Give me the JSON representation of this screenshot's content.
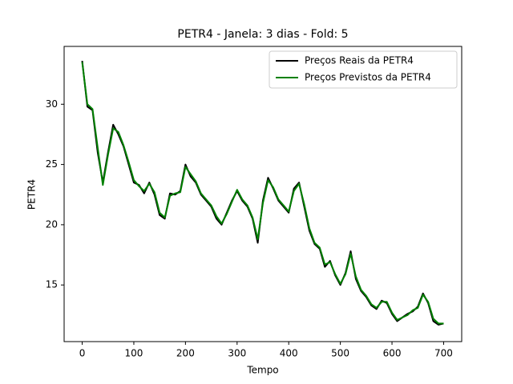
{
  "chart_data": {
    "type": "line",
    "title": "PETR4 - Janela: 3 dias - Fold: 5",
    "xlabel": "Tempo",
    "ylabel": "PETR4",
    "x": [
      0,
      10,
      20,
      30,
      40,
      50,
      60,
      70,
      80,
      90,
      100,
      110,
      120,
      130,
      140,
      150,
      160,
      170,
      180,
      190,
      200,
      210,
      220,
      230,
      240,
      250,
      260,
      270,
      280,
      290,
      300,
      310,
      320,
      330,
      340,
      350,
      360,
      370,
      380,
      390,
      400,
      410,
      420,
      430,
      440,
      450,
      460,
      470,
      480,
      490,
      500,
      510,
      520,
      530,
      540,
      550,
      560,
      570,
      580,
      590,
      600,
      610,
      620,
      630,
      640,
      650,
      660,
      670,
      680,
      690,
      700
    ],
    "series": [
      {
        "name": "Preços Reais da PETR4",
        "color": "#000000",
        "values": [
          33.6,
          29.8,
          29.5,
          26.0,
          23.5,
          26.0,
          28.3,
          27.5,
          26.5,
          25.0,
          23.5,
          23.3,
          22.6,
          23.5,
          22.5,
          20.8,
          20.5,
          22.6,
          22.5,
          22.8,
          25.0,
          24.0,
          23.5,
          22.5,
          22.0,
          21.5,
          20.5,
          20.0,
          21.0,
          22.0,
          22.8,
          22.0,
          21.5,
          20.5,
          18.5,
          22.0,
          23.9,
          23.0,
          22.0,
          21.5,
          21.0,
          23.0,
          23.5,
          21.5,
          19.5,
          18.4,
          18.0,
          16.5,
          17.0,
          15.8,
          15.0,
          16.0,
          17.8,
          15.5,
          14.5,
          14.0,
          13.3,
          13.0,
          13.7,
          13.5,
          12.6,
          12.0,
          12.3,
          12.6,
          12.8,
          13.2,
          14.3,
          13.5,
          12.0,
          11.7,
          11.8
        ]
      },
      {
        "name": "Preços Previstos da PETR4",
        "color": "#008000",
        "values": [
          33.5,
          30.0,
          29.6,
          26.4,
          23.3,
          25.8,
          28.0,
          27.7,
          26.6,
          25.2,
          23.7,
          23.2,
          22.8,
          23.4,
          22.7,
          21.0,
          20.6,
          22.4,
          22.6,
          22.7,
          24.8,
          24.2,
          23.6,
          22.6,
          22.1,
          21.6,
          20.7,
          20.1,
          20.9,
          21.9,
          22.9,
          22.1,
          21.6,
          20.6,
          18.8,
          21.8,
          23.7,
          23.1,
          22.1,
          21.6,
          21.1,
          22.8,
          23.4,
          21.7,
          19.7,
          18.5,
          18.1,
          16.7,
          16.9,
          15.9,
          15.1,
          15.9,
          17.6,
          15.7,
          14.6,
          14.1,
          13.4,
          13.1,
          13.6,
          13.6,
          12.7,
          12.1,
          12.3,
          12.5,
          12.9,
          13.1,
          14.2,
          13.6,
          12.2,
          11.8,
          11.8
        ]
      }
    ],
    "xlim": [
      -35,
      735
    ],
    "ylim": [
      10.3,
      34.8
    ],
    "xticks": [
      0,
      100,
      200,
      300,
      400,
      500,
      600,
      700
    ],
    "yticks": [
      15,
      20,
      25,
      30
    ],
    "legend": "upper right"
  }
}
